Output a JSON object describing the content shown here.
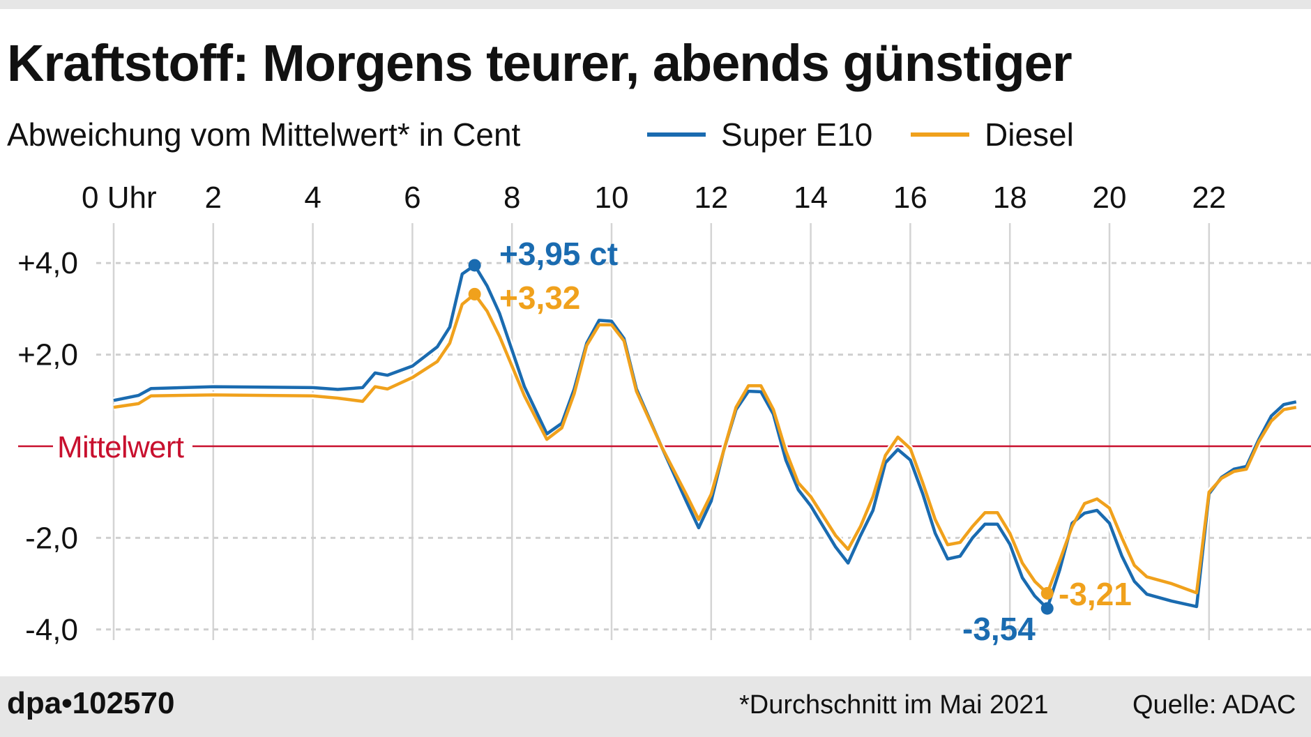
{
  "header": {
    "title": "Kraftstoff: Morgens teurer, abends günstiger",
    "subtitle": "Abweichung vom Mittelwert* in Cent"
  },
  "footer": {
    "logo": "dpa•102570",
    "note": "*Durchschnitt im Mai 2021",
    "source": "Quelle: ADAC"
  },
  "chart_data": {
    "type": "line",
    "title": "Kraftstoff: Morgens teurer, abends günstiger",
    "ylabel": "Abweichung vom Mittelwert* in Cent",
    "xlim": [
      0,
      24
    ],
    "ylim": [
      -4.3,
      4.5
    ],
    "grid": true,
    "legend": "top",
    "x_ticks": [
      0,
      2,
      4,
      6,
      8,
      10,
      12,
      14,
      16,
      18,
      20,
      22
    ],
    "x_tick_labels": [
      "0 Uhr",
      "2",
      "4",
      "6",
      "8",
      "10",
      "12",
      "14",
      "16",
      "18",
      "20",
      "22"
    ],
    "y_ticks": [
      4,
      2,
      -2,
      -4
    ],
    "y_tick_labels": [
      "+4,0",
      "+2,0",
      "-2,0",
      "-4,0"
    ],
    "reference_line": {
      "value": 0,
      "label": "Mittelwert",
      "color": "#c8102e"
    },
    "x": [
      0,
      0.5,
      0.75,
      2,
      4,
      4.5,
      5,
      5.25,
      5.5,
      6,
      6.5,
      6.75,
      7,
      7.25,
      7.5,
      7.75,
      8.25,
      8.7,
      9,
      9.25,
      9.5,
      9.75,
      10,
      10.25,
      10.5,
      11,
      11.5,
      11.75,
      12,
      12.25,
      12.5,
      12.75,
      13,
      13.25,
      13.5,
      13.75,
      14,
      14.5,
      14.75,
      15,
      15.25,
      15.5,
      15.75,
      16,
      16.25,
      16.5,
      16.75,
      17,
      17.25,
      17.5,
      17.75,
      18,
      18.25,
      18.5,
      18.75,
      19,
      19.25,
      19.5,
      19.75,
      20,
      20.25,
      20.5,
      20.75,
      21.25,
      21.75,
      22,
      22.25,
      22.5,
      22.75,
      23,
      23.25,
      23.5,
      23.75
    ],
    "series": [
      {
        "name": "Super E10",
        "color": "#1a6bb0",
        "values": [
          1.0,
          1.11,
          1.26,
          1.3,
          1.28,
          1.24,
          1.28,
          1.6,
          1.55,
          1.75,
          2.17,
          2.6,
          3.76,
          3.95,
          3.5,
          2.9,
          1.3,
          0.27,
          0.5,
          1.25,
          2.25,
          2.75,
          2.73,
          2.35,
          1.25,
          0.0,
          -1.2,
          -1.78,
          -1.2,
          -0.1,
          0.8,
          1.2,
          1.19,
          0.7,
          -0.3,
          -0.95,
          -1.3,
          -2.2,
          -2.55,
          -1.95,
          -1.4,
          -0.36,
          -0.07,
          -0.3,
          -1.04,
          -1.9,
          -2.46,
          -2.4,
          -2.0,
          -1.7,
          -1.7,
          -2.14,
          -2.87,
          -3.27,
          -3.54,
          -2.7,
          -1.68,
          -1.46,
          -1.4,
          -1.68,
          -2.4,
          -2.95,
          -3.23,
          -3.38,
          -3.5,
          -1.04,
          -0.68,
          -0.5,
          -0.44,
          0.15,
          0.66,
          0.91,
          0.97
        ],
        "annotation": {
          "x": 7.25,
          "value": 3.95,
          "label": "+3,95 ct"
        },
        "min_annotation": {
          "x": 18.75,
          "value": -3.54,
          "label": "-3,54"
        }
      },
      {
        "name": "Diesel",
        "color": "#f0a11c",
        "values": [
          0.85,
          0.93,
          1.1,
          1.12,
          1.1,
          1.05,
          0.98,
          1.3,
          1.25,
          1.5,
          1.85,
          2.25,
          3.1,
          3.32,
          2.95,
          2.4,
          1.1,
          0.15,
          0.4,
          1.15,
          2.2,
          2.65,
          2.65,
          2.3,
          1.2,
          0.0,
          -1.05,
          -1.6,
          -1.05,
          -0.1,
          0.85,
          1.32,
          1.32,
          0.8,
          -0.1,
          -0.8,
          -1.1,
          -1.95,
          -2.25,
          -1.75,
          -1.1,
          -0.2,
          0.2,
          -0.05,
          -0.8,
          -1.6,
          -2.15,
          -2.1,
          -1.75,
          -1.45,
          -1.45,
          -1.9,
          -2.55,
          -2.95,
          -3.21,
          -2.5,
          -1.75,
          -1.25,
          -1.15,
          -1.35,
          -2.0,
          -2.6,
          -2.85,
          -3.0,
          -3.2,
          -1.0,
          -0.7,
          -0.55,
          -0.5,
          0.1,
          0.55,
          0.8,
          0.85
        ],
        "annotation": {
          "x": 7.25,
          "value": 3.32,
          "label": "+3,32"
        },
        "min_annotation": {
          "x": 18.75,
          "value": -3.21,
          "label": "-3,21"
        }
      }
    ]
  }
}
